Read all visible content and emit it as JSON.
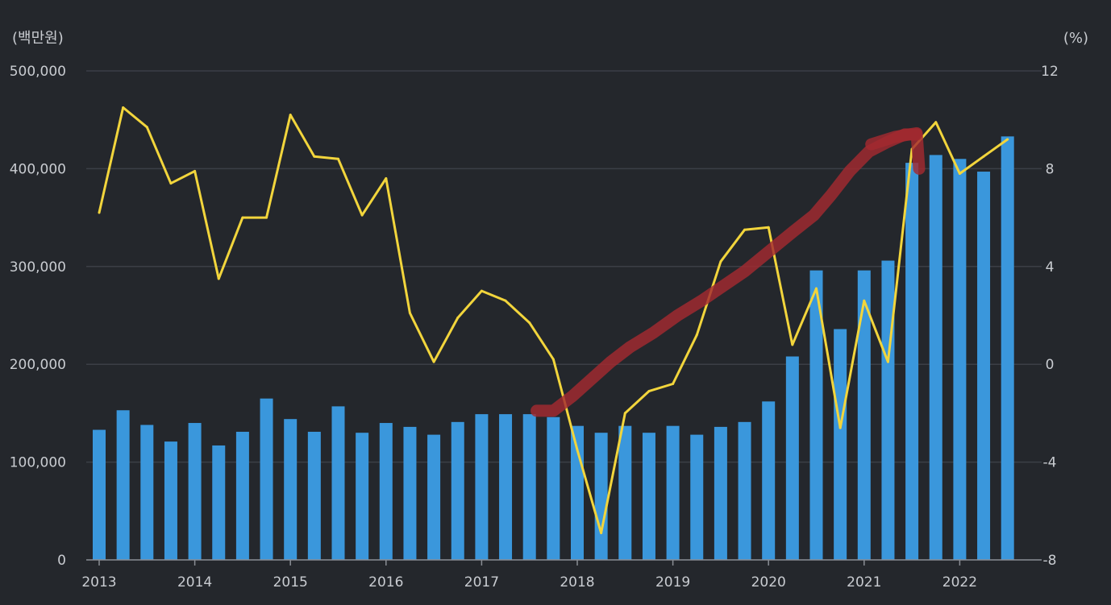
{
  "chart_data": {
    "type": "bar",
    "y_unit_left": "(백만원)",
    "y_unit_right": "(%)",
    "years": [
      "2013",
      "2014",
      "2015",
      "2016",
      "2017",
      "2018",
      "2019",
      "2020",
      "2021",
      "2022"
    ],
    "y_left_ticks": [
      "0",
      "100,000",
      "200,000",
      "300,000",
      "400,000",
      "500,000"
    ],
    "y_right_ticks": [
      "-8",
      "-4",
      "0",
      "4",
      "8",
      "12"
    ],
    "ylim_left": [
      0,
      500000
    ],
    "ylim_right": [
      -8,
      12
    ],
    "x_start_year": 2013,
    "points_per_year": 4,
    "series": [
      {
        "type": "bar",
        "axis": "left",
        "color": "#3a97dc",
        "values": [
          133000,
          153000,
          138000,
          121000,
          140000,
          117000,
          131000,
          165000,
          144000,
          131000,
          157000,
          130000,
          140000,
          136000,
          128000,
          141000,
          149000,
          149000,
          149000,
          146000,
          137000,
          130000,
          137000,
          130000,
          137000,
          128000,
          136000,
          141000,
          162000,
          208000,
          296000,
          236000,
          296000,
          306000,
          406000,
          414000,
          410000,
          397000,
          433000
        ]
      },
      {
        "type": "line",
        "axis": "right",
        "color": "#f2d53c",
        "values": [
          6.2,
          10.5,
          9.7,
          7.4,
          7.9,
          3.5,
          6.0,
          6.0,
          10.2,
          8.5,
          8.4,
          6.1,
          7.6,
          2.1,
          0.1,
          1.9,
          3.0,
          2.6,
          1.7,
          0.2,
          -3.5,
          -6.9,
          -2.0,
          -1.1,
          -0.8,
          1.2,
          4.2,
          5.5,
          5.6,
          0.8,
          3.1,
          -2.6,
          2.6,
          0.1,
          8.8,
          9.9,
          7.8,
          8.5,
          9.2
        ]
      }
    ],
    "annotation": {
      "type": "trend-arrow",
      "color": "#a42a30",
      "path": [
        [
          18.3,
          -1.9
        ],
        [
          19.0,
          -1.9
        ],
        [
          19.8,
          -1.3
        ],
        [
          20.6,
          -0.6
        ],
        [
          21.4,
          0.1
        ],
        [
          22.2,
          0.7
        ],
        [
          23.2,
          1.3
        ],
        [
          24.2,
          2.0
        ],
        [
          25.2,
          2.6
        ],
        [
          26.1,
          3.2
        ],
        [
          27.0,
          3.8
        ],
        [
          28.0,
          4.6
        ],
        [
          29.0,
          5.4
        ],
        [
          29.9,
          6.1
        ],
        [
          30.6,
          6.9
        ],
        [
          31.4,
          7.9
        ],
        [
          32.2,
          8.7
        ],
        [
          33.0,
          9.1
        ],
        [
          33.7,
          9.4
        ],
        [
          34.2,
          9.4
        ]
      ],
      "head": [
        [
          32.3,
          9.0
        ],
        [
          33.3,
          9.3
        ],
        [
          34.2,
          9.45
        ],
        [
          34.3,
          8.0
        ]
      ]
    }
  }
}
